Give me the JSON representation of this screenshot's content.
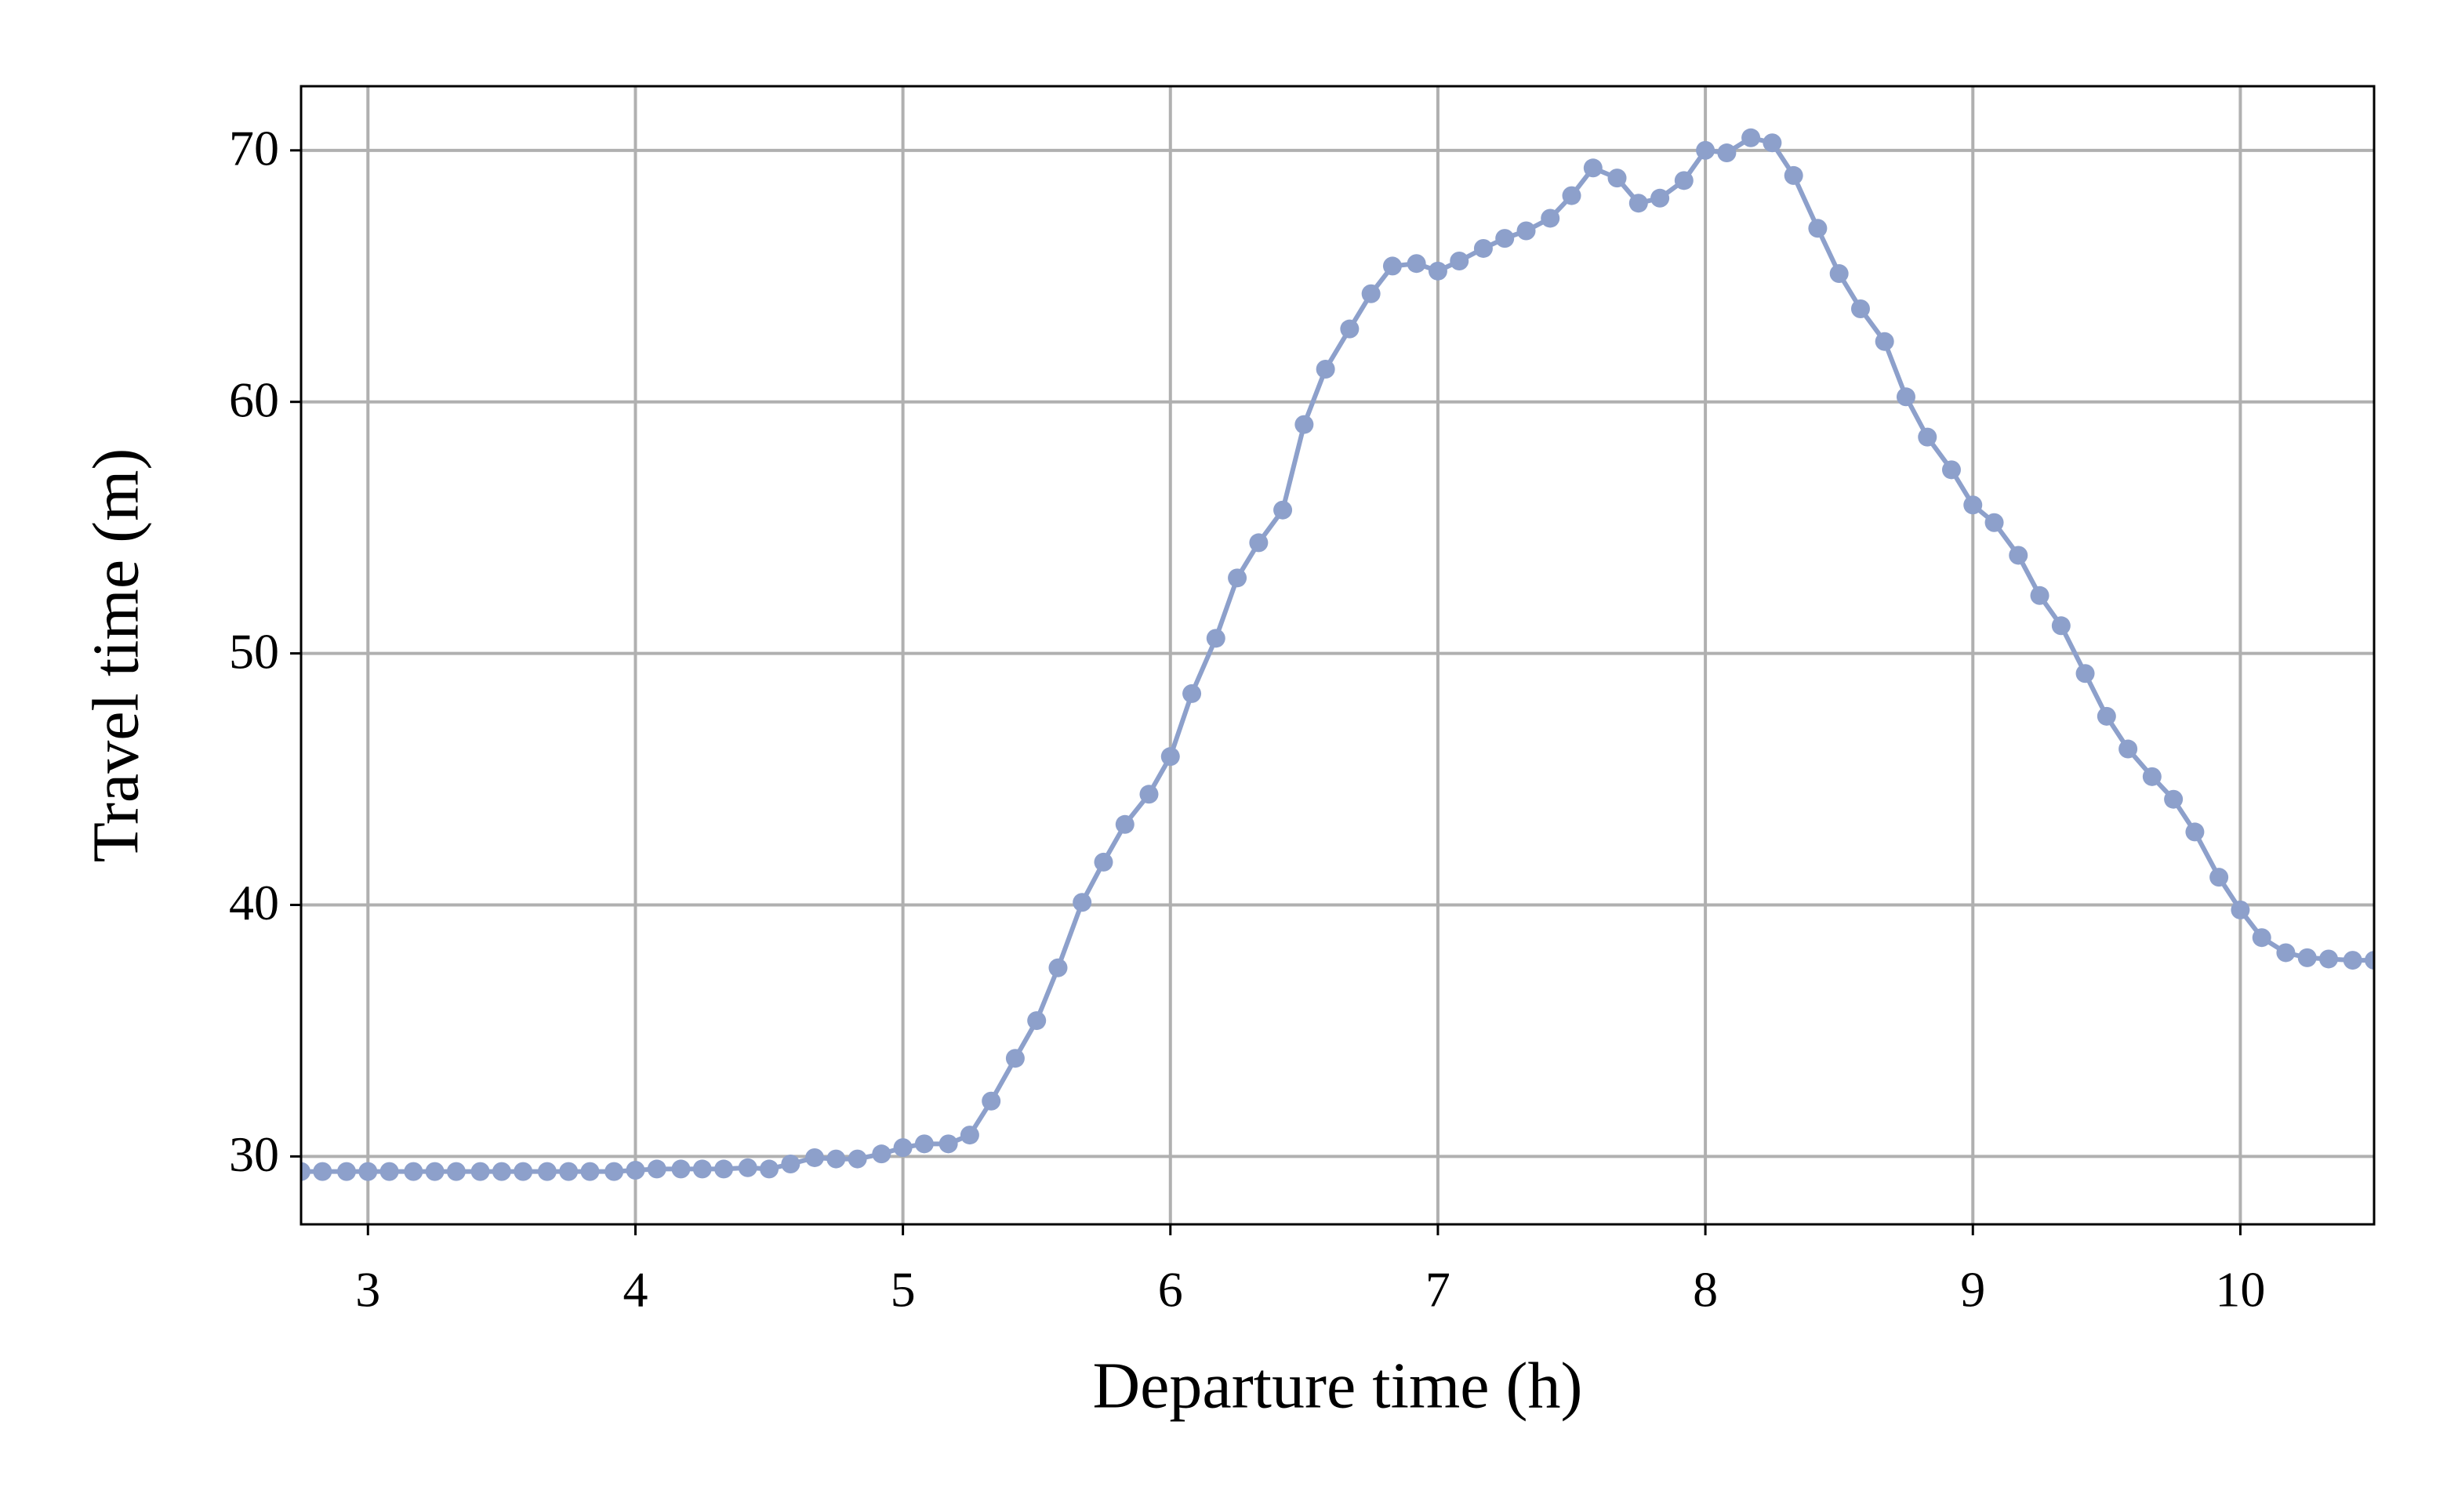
{
  "chart_data": {
    "type": "line",
    "xlabel": "Departure time (h)",
    "ylabel": "Travel time (m)",
    "x": [
      2.75,
      2.83,
      2.92,
      3,
      3.08,
      3.17,
      3.25,
      3.33,
      3.42,
      3.5,
      3.58,
      3.67,
      3.75,
      3.83,
      3.92,
      4,
      4.08,
      4.17,
      4.25,
      4.33,
      4.42,
      4.5,
      4.58,
      4.67,
      4.75,
      4.83,
      4.92,
      5,
      5.08,
      5.17,
      5.25,
      5.33,
      5.42,
      5.5,
      5.58,
      5.67,
      5.75,
      5.83,
      5.92,
      6,
      6.08,
      6.17,
      6.25,
      6.33,
      6.42,
      6.5,
      6.58,
      6.67,
      6.75,
      6.83,
      6.92,
      7,
      7.08,
      7.17,
      7.25,
      7.33,
      7.42,
      7.5,
      7.58,
      7.67,
      7.75,
      7.83,
      7.92,
      8,
      8.08,
      8.17,
      8.25,
      8.33,
      8.42,
      8.5,
      8.58,
      8.67,
      8.75,
      8.83,
      8.92,
      9,
      9.08,
      9.17,
      9.25,
      9.33,
      9.42,
      9.5,
      9.58,
      9.67,
      9.75,
      9.83,
      9.92,
      10,
      10.08,
      10.17,
      10.25,
      10.33,
      10.42,
      10.5
    ],
    "values": [
      29.4,
      29.4,
      29.4,
      29.4,
      29.4,
      29.4,
      29.4,
      29.4,
      29.4,
      29.4,
      29.4,
      29.4,
      29.4,
      29.4,
      29.4,
      29.45,
      29.5,
      29.5,
      29.5,
      29.5,
      29.55,
      29.5,
      29.7,
      29.95,
      29.9,
      29.9,
      30.1,
      30.35,
      30.5,
      30.5,
      30.85,
      32.2,
      33.9,
      35.4,
      37.5,
      40.1,
      41.7,
      43.2,
      44.4,
      45.9,
      48.4,
      50.6,
      53.0,
      54.4,
      55.7,
      59.1,
      61.3,
      62.9,
      64.3,
      65.4,
      65.5,
      65.2,
      65.6,
      66.1,
      66.5,
      66.8,
      67.3,
      68.2,
      69.3,
      68.9,
      67.9,
      68.1,
      68.8,
      70.0,
      69.9,
      70.5,
      70.3,
      69.0,
      66.9,
      65.1,
      63.7,
      62.4,
      60.2,
      58.6,
      57.3,
      55.9,
      55.2,
      53.9,
      52.3,
      51.1,
      49.2,
      47.5,
      46.2,
      45.1,
      44.2,
      42.9,
      41.1,
      39.8,
      38.7,
      38.1,
      37.9,
      37.85,
      37.8,
      37.8
    ],
    "color": "#8da0cb",
    "xlim": [
      2.75,
      10.5
    ],
    "ylim": [
      27.3,
      72.55
    ],
    "xticks": [
      3,
      4,
      5,
      6,
      7,
      8,
      9,
      10
    ],
    "yticks": [
      30,
      40,
      50,
      60,
      70
    ],
    "grid": true
  }
}
